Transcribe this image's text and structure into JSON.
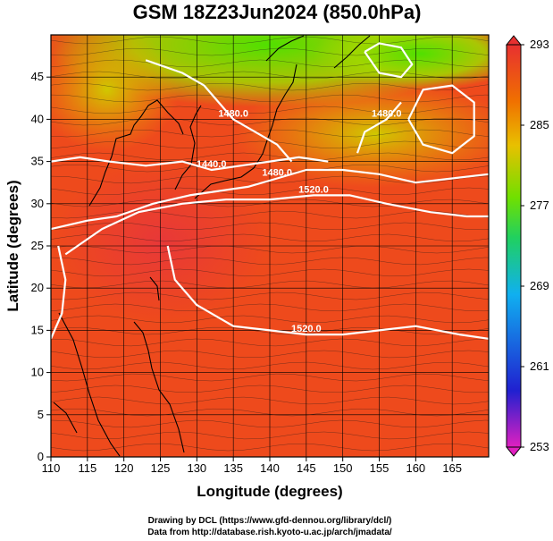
{
  "chart_data": {
    "type": "heatmap",
    "title": "GSM 18Z23Jun2024 (850.0hPa)",
    "xlabel": "Longitude (degrees)",
    "ylabel": "Latitude  (degrees)",
    "xlim": [
      110,
      170
    ],
    "ylim": [
      0,
      50
    ],
    "xticks": [
      110,
      115,
      120,
      125,
      130,
      135,
      140,
      145,
      150,
      155,
      160,
      165
    ],
    "yticks": [
      0,
      5,
      10,
      15,
      20,
      25,
      30,
      35,
      40,
      45
    ],
    "grid": true,
    "colorbar": {
      "ticks": [
        253,
        261,
        269,
        277,
        285,
        293
      ],
      "range": [
        253,
        293
      ],
      "colors": [
        "#e020c0",
        "#2020d0",
        "#10b0f0",
        "#20d060",
        "#70e000",
        "#e8c000",
        "#f07000",
        "#e83030"
      ]
    },
    "contours": [
      {
        "label": "1480.0",
        "points": [
          [
            123,
            47
          ],
          [
            128,
            45.5
          ],
          [
            131,
            44
          ],
          [
            133,
            42
          ],
          [
            135,
            40
          ],
          [
            138,
            38.5
          ],
          [
            141,
            37
          ],
          [
            143,
            35
          ]
        ]
      },
      {
        "label": "1440.0",
        "points": [
          [
            110,
            35
          ],
          [
            114,
            35.5
          ],
          [
            118,
            35
          ],
          [
            123,
            34.5
          ],
          [
            128,
            35
          ],
          [
            132,
            34
          ],
          [
            136,
            34.5
          ],
          [
            140,
            35
          ],
          [
            144,
            35.5
          ],
          [
            148,
            35
          ]
        ]
      },
      {
        "label": "1480.0",
        "points": [
          [
            110,
            27
          ],
          [
            115,
            28
          ],
          [
            119,
            28.5
          ],
          [
            124,
            30
          ],
          [
            129,
            31
          ],
          [
            133,
            31.5
          ],
          [
            137,
            32
          ],
          [
            141,
            33
          ],
          [
            145,
            34
          ],
          [
            150,
            34
          ],
          [
            155,
            33.5
          ],
          [
            160,
            32.5
          ],
          [
            165,
            33
          ],
          [
            170,
            33.5
          ]
        ]
      },
      {
        "label": "1520.0",
        "points": [
          [
            112,
            24
          ],
          [
            117,
            27
          ],
          [
            122,
            29
          ],
          [
            128,
            30
          ],
          [
            134,
            30.5
          ],
          [
            140,
            30.5
          ],
          [
            146,
            31
          ],
          [
            151,
            31
          ],
          [
            156,
            30
          ],
          [
            162,
            29
          ],
          [
            167,
            28.5
          ],
          [
            170,
            28.5
          ]
        ]
      },
      {
        "label": "1520.0",
        "points": [
          [
            126,
            25
          ],
          [
            127,
            21
          ],
          [
            130,
            18
          ],
          [
            135,
            15.5
          ],
          [
            140,
            15
          ],
          [
            145,
            14.5
          ],
          [
            150,
            14.5
          ],
          [
            155,
            15
          ],
          [
            160,
            15.5
          ],
          [
            166,
            14.5
          ],
          [
            170,
            14
          ]
        ]
      },
      {
        "label": "",
        "points": [
          [
            110,
            14
          ],
          [
            111.5,
            17
          ],
          [
            112,
            21
          ],
          [
            111,
            25
          ]
        ]
      },
      {
        "label": "",
        "points": [
          [
            153,
            48
          ],
          [
            155,
            45.5
          ],
          [
            158,
            45
          ],
          [
            159.5,
            46.5
          ],
          [
            158,
            48.5
          ],
          [
            155,
            49
          ],
          [
            153,
            48
          ]
        ]
      },
      {
        "label": "",
        "points": [
          [
            159,
            40
          ],
          [
            161,
            37
          ],
          [
            165,
            36
          ],
          [
            168,
            38
          ],
          [
            168,
            42
          ],
          [
            165,
            44
          ],
          [
            161,
            43.5
          ],
          [
            159,
            40
          ]
        ]
      },
      {
        "label": "1480.0",
        "points": [
          [
            152,
            36
          ],
          [
            153,
            38.5
          ],
          [
            156,
            40
          ],
          [
            158,
            42
          ]
        ]
      }
    ],
    "credits": [
      "Drawing by DCL (https://www.gfd-dennou.org/library/dcl/)",
      "Data from http://database.rish.kyoto-u.ac.jp/arch/jmadata/"
    ]
  }
}
